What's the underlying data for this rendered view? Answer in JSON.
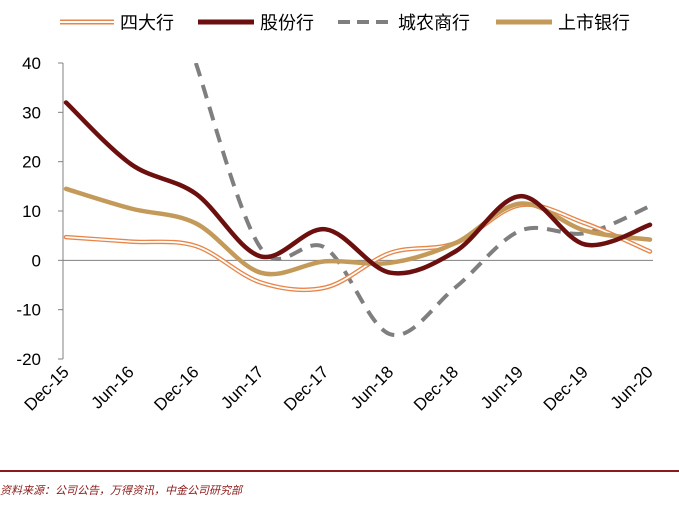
{
  "chart_data": {
    "type": "line",
    "title": "",
    "xlabel": "",
    "ylabel": "",
    "ylim": [
      -20,
      40
    ],
    "yticks": [
      -20,
      -10,
      0,
      10,
      20,
      30,
      40
    ],
    "categories": [
      "Dec-15",
      "Jun-16",
      "Dec-16",
      "Jun-17",
      "Dec-17",
      "Jun-18",
      "Dec-18",
      "Jun-19",
      "Dec-19",
      "Jun-20"
    ],
    "legend_position": "top",
    "series": [
      {
        "name": "四大行",
        "style": "double",
        "color": "#e8864a",
        "values": [
          4.7,
          3.8,
          2.9,
          -4.5,
          -5.5,
          1.5,
          3.5,
          11.2,
          7.5,
          1.8
        ]
      },
      {
        "name": "股份行",
        "style": "solid-thick",
        "color": "#6b0f0f",
        "values": [
          32,
          19.5,
          13.5,
          0.8,
          6.3,
          -2.5,
          1.8,
          13,
          3.2,
          7.2
        ]
      },
      {
        "name": "城农商行",
        "style": "dashed",
        "color": "#7f7f7f",
        "values": [
          null,
          null,
          40,
          2.5,
          2.5,
          -15,
          -5.5,
          6,
          5.5,
          11
        ]
      },
      {
        "name": "上市银行",
        "style": "solid-thick",
        "color": "#c49a5a",
        "values": [
          14.5,
          10.5,
          7.5,
          -2.5,
          -0.2,
          -0.5,
          3.5,
          11.5,
          6,
          4.2
        ]
      }
    ]
  },
  "source": "资料来源：公司公告，万得资讯，中金公司研究部"
}
